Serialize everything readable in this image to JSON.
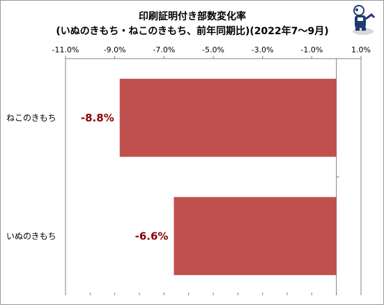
{
  "chart_data": {
    "type": "bar",
    "orientation": "horizontal",
    "title": "印刷証明付き部数変化率",
    "subtitle": "(いぬのきもち・ねこのきもち、前年同期比)(2022年7～9月)",
    "categories": [
      "ねこのきもち",
      "いぬのきもち"
    ],
    "values": [
      -8.8,
      -6.6
    ],
    "data_labels": [
      "-8.8%",
      "-6.6%"
    ],
    "xlim": [
      -11.0,
      1.0
    ],
    "ticks": [
      -11.0,
      -9.0,
      -7.0,
      -5.0,
      -3.0,
      -1.0,
      1.0
    ],
    "tick_labels": [
      "-11.0%",
      "-9.0%",
      "-7.0%",
      "-5.0%",
      "-3.0%",
      "-1.0%",
      "1.0%"
    ],
    "axis_position": "top",
    "grid": false,
    "legend": "none",
    "bar_color": "#c0504d",
    "label_color": "#8b0000"
  }
}
